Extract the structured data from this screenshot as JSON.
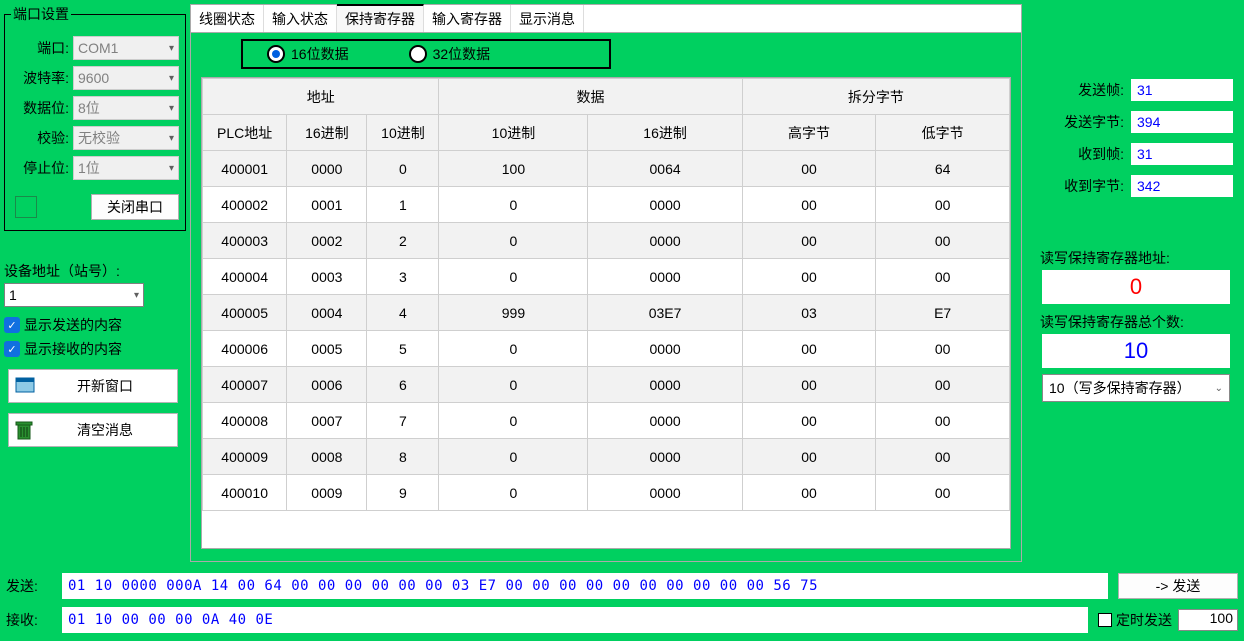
{
  "port_settings": {
    "legend": "端口设置",
    "port_label": "端口:",
    "port_value": "COM1",
    "baud_label": "波特率:",
    "baud_value": "9600",
    "data_label": "数据位:",
    "data_value": "8位",
    "parity_label": "校验:",
    "parity_value": "无校验",
    "stop_label": "停止位:",
    "stop_value": "1位",
    "close_btn": "关闭串口",
    "status_color": "#00d060"
  },
  "device": {
    "addr_label": "设备地址（站号）:",
    "addr_value": "1",
    "show_send_label": "显示发送的内容",
    "show_recv_label": "显示接收的内容",
    "new_window_btn": "开新窗口",
    "clear_msg_btn": "清空消息"
  },
  "tabs": {
    "items": [
      "线圈状态",
      "输入状态",
      "保持寄存器",
      "输入寄存器",
      "显示消息"
    ],
    "active_index": 2
  },
  "bit_select": {
    "opt16": "16位数据",
    "opt32": "32位数据",
    "selected": "16"
  },
  "table": {
    "group_headers": [
      "地址",
      "数据",
      "拆分字节"
    ],
    "sub_headers": [
      "PLC地址",
      "16进制",
      "10进制",
      "10进制",
      "16进制",
      "高字节",
      "低字节"
    ],
    "rows": [
      [
        "400001",
        "0000",
        "0",
        "100",
        "0064",
        "00",
        "64"
      ],
      [
        "400002",
        "0001",
        "1",
        "0",
        "0000",
        "00",
        "00"
      ],
      [
        "400003",
        "0002",
        "2",
        "0",
        "0000",
        "00",
        "00"
      ],
      [
        "400004",
        "0003",
        "3",
        "0",
        "0000",
        "00",
        "00"
      ],
      [
        "400005",
        "0004",
        "4",
        "999",
        "03E7",
        "03",
        "E7"
      ],
      [
        "400006",
        "0005",
        "5",
        "0",
        "0000",
        "00",
        "00"
      ],
      [
        "400007",
        "0006",
        "6",
        "0",
        "0000",
        "00",
        "00"
      ],
      [
        "400008",
        "0007",
        "7",
        "0",
        "0000",
        "00",
        "00"
      ],
      [
        "400009",
        "0008",
        "8",
        "0",
        "0000",
        "00",
        "00"
      ],
      [
        "400010",
        "0009",
        "9",
        "0",
        "0000",
        "00",
        "00"
      ]
    ],
    "header_bg": "#f2f2f2",
    "alt_row_bg": "#f2f2f2"
  },
  "stats": {
    "send_frames_label": "发送帧:",
    "send_frames": "31",
    "send_bytes_label": "发送字节:",
    "send_bytes": "394",
    "recv_frames_label": "收到帧:",
    "recv_frames": "31",
    "recv_bytes_label": "收到字节:",
    "recv_bytes": "342"
  },
  "register": {
    "addr_label": "读写保持寄存器地址:",
    "addr_value": "0",
    "count_label": "读写保持寄存器总个数:",
    "count_value": "10",
    "func_value": "10（写多保持寄存器）"
  },
  "bottom": {
    "send_label": "发送:",
    "send_hex": "01  10  0000  000A  14   00 64 00 00 00 00 00 00 03 E7 00 00 00 00 00 00 00 00 00 00  56 75",
    "recv_label": "接收:",
    "recv_hex": "01 10 00 00 00 0A 40 0E",
    "send_btn": "->  发送",
    "timed_label": "定时发送",
    "timed_value": "100"
  },
  "colors": {
    "bg": "#00d060",
    "blue_text": "#0000ff",
    "red_text": "#ff0000"
  }
}
